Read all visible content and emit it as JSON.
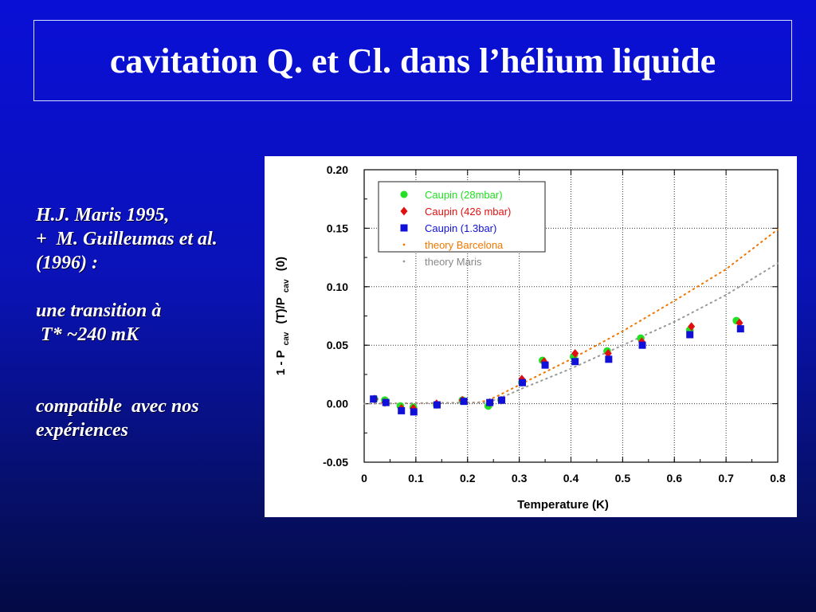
{
  "slide": {
    "title": "cavitation Q. et Cl. dans l’hélium liquide",
    "notes": [
      "H.J. Maris 1995,",
      "+  M. Guilleumas et al.",
      "(1996) :",
      "",
      "une transition à",
      " T* ~240 mK",
      "",
      "",
      "compatible  avec nos",
      "expériences"
    ]
  },
  "chart_data": {
    "type": "scatter",
    "xlabel": "Temperature  (K)",
    "ylabel_parts": [
      "1 - P",
      "cav",
      " (T)/P",
      "cav",
      " (0)"
    ],
    "xlim": [
      0,
      0.8
    ],
    "ylim": [
      -0.05,
      0.2
    ],
    "x_ticks": [
      0,
      0.1,
      0.2,
      0.3,
      0.4,
      0.5,
      0.6,
      0.7,
      0.8
    ],
    "x_tick_labels": [
      "0",
      "0.1",
      "0.2",
      "0.3",
      "0.4",
      "0.5",
      "0.6",
      "0.7",
      "0.8"
    ],
    "y_ticks": [
      -0.05,
      0,
      0.05,
      0.1,
      0.15,
      0.2
    ],
    "y_tick_labels": [
      "-0.05",
      "0.00",
      "0.05",
      "0.10",
      "0.15",
      "0.20"
    ],
    "grid": true,
    "legend_position": "top-left",
    "series": [
      {
        "name": "Caupin  (28mbar)",
        "marker": "circle",
        "color": "#22e022",
        "points": [
          [
            0.02,
            0.004
          ],
          [
            0.04,
            0.003
          ],
          [
            0.07,
            -0.002
          ],
          [
            0.095,
            -0.003
          ],
          [
            0.14,
            -0.001
          ],
          [
            0.19,
            0.003
          ],
          [
            0.24,
            -0.002
          ],
          [
            0.265,
            0.003
          ],
          [
            0.305,
            0.018
          ],
          [
            0.345,
            0.037
          ],
          [
            0.405,
            0.04
          ],
          [
            0.47,
            0.045
          ],
          [
            0.535,
            0.056
          ],
          [
            0.63,
            0.063
          ],
          [
            0.72,
            0.071
          ]
        ]
      },
      {
        "name": "Caupin (426 mbar)",
        "marker": "diamond",
        "color": "#e01010",
        "points": [
          [
            0.02,
            0.004
          ],
          [
            0.04,
            0.001
          ],
          [
            0.072,
            -0.004
          ],
          [
            0.095,
            -0.004
          ],
          [
            0.14,
            0.0
          ],
          [
            0.19,
            0.003
          ],
          [
            0.243,
            0.001
          ],
          [
            0.265,
            0.003
          ],
          [
            0.305,
            0.021
          ],
          [
            0.348,
            0.036
          ],
          [
            0.408,
            0.043
          ],
          [
            0.472,
            0.043
          ],
          [
            0.537,
            0.053
          ],
          [
            0.633,
            0.066
          ],
          [
            0.726,
            0.069
          ]
        ]
      },
      {
        "name": "Caupin (1.3bar)",
        "marker": "square",
        "color": "#1010d8",
        "points": [
          [
            0.018,
            0.004
          ],
          [
            0.042,
            0.001
          ],
          [
            0.072,
            -0.006
          ],
          [
            0.096,
            -0.007
          ],
          [
            0.141,
            -0.001
          ],
          [
            0.193,
            0.002
          ],
          [
            0.243,
            0.001
          ],
          [
            0.266,
            0.003
          ],
          [
            0.306,
            0.018
          ],
          [
            0.35,
            0.033
          ],
          [
            0.408,
            0.036
          ],
          [
            0.473,
            0.038
          ],
          [
            0.538,
            0.05
          ],
          [
            0.63,
            0.059
          ],
          [
            0.728,
            0.064
          ]
        ]
      },
      {
        "name": "theory Barcelona",
        "marker": "dotted-line",
        "color": "#f07800",
        "points": [
          [
            0,
            0
          ],
          [
            0.22,
            0.001
          ],
          [
            0.24,
            0.003
          ],
          [
            0.26,
            0.007
          ],
          [
            0.3,
            0.016
          ],
          [
            0.4,
            0.038
          ],
          [
            0.5,
            0.062
          ],
          [
            0.6,
            0.088
          ],
          [
            0.7,
            0.115
          ],
          [
            0.8,
            0.149
          ]
        ]
      },
      {
        "name": "theory Maris",
        "marker": "dotted-line",
        "color": "#999999",
        "points": [
          [
            0,
            0
          ],
          [
            0.24,
            0.001
          ],
          [
            0.28,
            0.008
          ],
          [
            0.3,
            0.012
          ],
          [
            0.4,
            0.03
          ],
          [
            0.5,
            0.05
          ],
          [
            0.6,
            0.07
          ],
          [
            0.7,
            0.093
          ],
          [
            0.8,
            0.12
          ]
        ]
      }
    ]
  }
}
